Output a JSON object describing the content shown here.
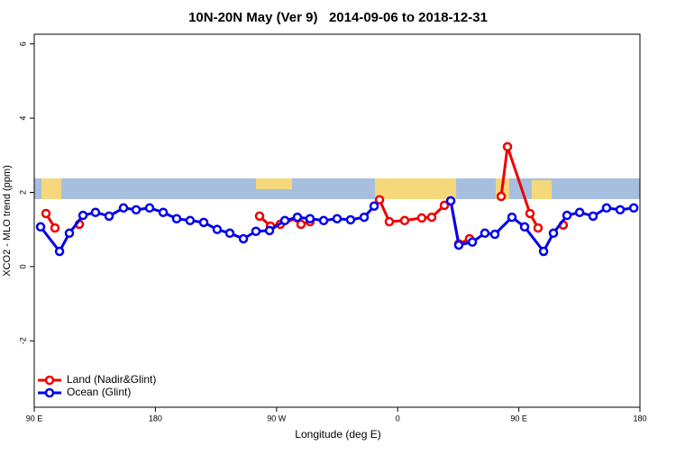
{
  "chart_data": {
    "type": "line",
    "title": "10N-20N May (Ver 9)   2014-09-06 to 2018-12-31",
    "xlabel": "Longitude (deg E)",
    "ylabel": "XCO2 - MLO trend (ppm)",
    "xlim": [
      90,
      540
    ],
    "ylim": [
      -3.79,
      6.26
    ],
    "xticks": [
      {
        "value": 90,
        "label": "90 E"
      },
      180,
      {
        "value": 270,
        "label": "90 W"
      },
      {
        "value": 360,
        "label": "0"
      },
      {
        "value": 450,
        "label": "90 E"
      },
      {
        "value": 540,
        "label": "180"
      }
    ],
    "yticks": [
      -2,
      0,
      2,
      4,
      6
    ],
    "legend": "bottom-left",
    "series": [
      {
        "name": "Land (Nadir&Glint)",
        "color": "#ee0000",
        "x": [
          98.7,
          105.4,
          null,
          123.5,
          null,
          257.4,
          265.5,
          272.8,
          285.5,
          288.2,
          294.9,
          null,
          346.5,
          353.8,
          365.2,
          377.9,
          385.3,
          394.7,
          399.4,
          405.4,
          413.4,
          null,
          436.9,
          441.6,
          458.3,
          464.3,
          null,
          483
        ],
        "values": [
          1.43,
          1.04,
          null,
          1.14,
          null,
          1.36,
          1.09,
          1.14,
          1.31,
          1.14,
          1.21,
          null,
          1.8,
          1.21,
          1.24,
          1.31,
          1.33,
          1.65,
          1.77,
          0.61,
          0.75,
          null,
          1.89,
          3.23,
          1.43,
          1.04,
          null,
          1.12
        ]
      },
      {
        "name": "Ocean (Glint)",
        "color": "#0000ee",
        "x": [
          94.7,
          108.8,
          116.1,
          126.2,
          135.5,
          145.6,
          156.3,
          165.7,
          175.7,
          185.8,
          195.8,
          205.8,
          215.9,
          225.9,
          235.3,
          245.4,
          254.7,
          264.8,
          276.2,
          285.5,
          294.9,
          305,
          315,
          325,
          335.1,
          342.5,
          null,
          399.4,
          405.4,
          415.5,
          424.8,
          432.2,
          444.9,
          454.3,
          468.4,
          475.7,
          485.8,
          495.2,
          505.2,
          515.2,
          525.3,
          535.4
        ],
        "values": [
          1.07,
          0.41,
          0.9,
          1.38,
          1.46,
          1.36,
          1.58,
          1.53,
          1.58,
          1.46,
          1.29,
          1.24,
          1.19,
          1.0,
          0.9,
          0.75,
          0.95,
          0.97,
          1.24,
          1.33,
          1.29,
          1.24,
          1.29,
          1.26,
          1.33,
          1.63,
          null,
          1.77,
          0.58,
          0.66,
          0.9,
          0.87,
          1.33,
          1.07,
          0.41,
          0.9,
          1.38,
          1.46,
          1.36,
          1.58,
          1.53,
          1.58
        ]
      }
    ]
  }
}
